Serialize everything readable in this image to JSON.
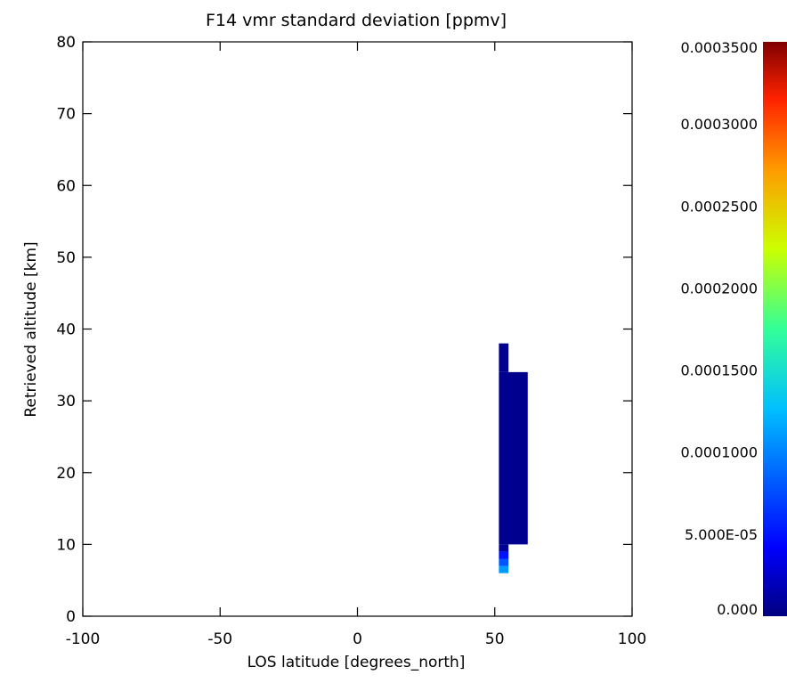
{
  "chart_data": {
    "type": "heatmap",
    "title": "F14 vmr standard deviation [ppmv]",
    "xlabel": "LOS latitude [degrees_north]",
    "ylabel": "Retrieved altitude [km]",
    "xlim": [
      -100,
      100
    ],
    "ylim": [
      0,
      80
    ],
    "xticks": [
      "-100",
      "-50",
      "0",
      "50",
      "100"
    ],
    "yticks": [
      "0",
      "10",
      "20",
      "30",
      "40",
      "50",
      "60",
      "70",
      "80"
    ],
    "colorbar": {
      "min": 0,
      "max": 0.00035,
      "labels": [
        "0.000",
        "5.000E-05",
        "0.0001000",
        "0.0001500",
        "0.0002000",
        "0.0002500",
        "0.0003000",
        "0.0003500"
      ],
      "colormap": "rainbow"
    },
    "cells": [
      {
        "lat": [
          51.5,
          55
        ],
        "alt": [
          34,
          38
        ],
        "value": 5e-06
      },
      {
        "lat": [
          51.5,
          62
        ],
        "alt": [
          10,
          34
        ],
        "value": 5e-06
      },
      {
        "lat": [
          51.5,
          55
        ],
        "alt": [
          9,
          10
        ],
        "value": 8e-06
      },
      {
        "lat": [
          51.5,
          55
        ],
        "alt": [
          8,
          9
        ],
        "value": 5e-05
      },
      {
        "lat": [
          51.5,
          55
        ],
        "alt": [
          7,
          8
        ],
        "value": 8e-05
      },
      {
        "lat": [
          51.5,
          55
        ],
        "alt": [
          6,
          7
        ],
        "value": 0.00011
      }
    ]
  }
}
